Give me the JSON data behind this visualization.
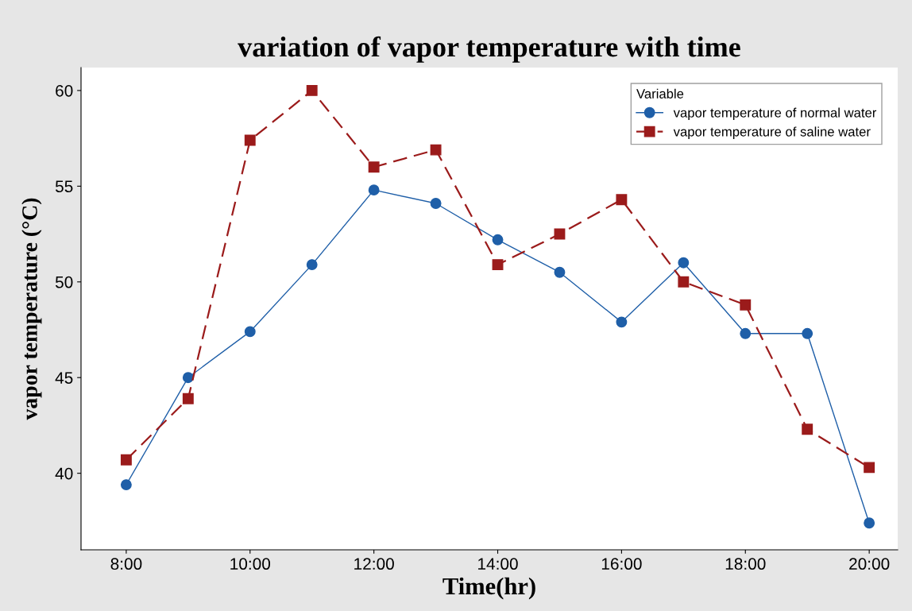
{
  "chart_data": {
    "type": "line",
    "title": "variation of vapor temperature with time",
    "xlabel": "Time(hr)",
    "ylabel": "vapor temperature (°C)",
    "legend_title": "Variable",
    "legend": "top right",
    "grid": false,
    "x": [
      8,
      9,
      10,
      11,
      12,
      13,
      14,
      15,
      16,
      17,
      18,
      19,
      20
    ],
    "xlim": [
      7.27,
      20.46
    ],
    "xticks": [
      {
        "value": 8,
        "label": "8:00"
      },
      {
        "value": 10,
        "label": "10:00"
      },
      {
        "value": 12,
        "label": "12:00"
      },
      {
        "value": 14,
        "label": "14:00"
      },
      {
        "value": 16,
        "label": "16:00"
      },
      {
        "value": 18,
        "label": "18:00"
      },
      {
        "value": 20,
        "label": "20:00"
      }
    ],
    "ylim": [
      36.0,
      61.2
    ],
    "yticks": [
      40,
      45,
      50,
      55,
      60
    ],
    "series": [
      {
        "name": "vapor temperature of normal water",
        "color": "#1f5fa8",
        "marker": "circle",
        "line_style": "solid",
        "values": [
          39.4,
          45.0,
          47.4,
          50.9,
          54.8,
          54.1,
          52.2,
          50.5,
          47.9,
          51.0,
          47.3,
          47.3,
          37.4
        ]
      },
      {
        "name": "vapor temperature of saline water",
        "color": "#9b1b1b",
        "marker": "square",
        "line_style": "dashed",
        "values": [
          40.7,
          43.9,
          57.4,
          60.0,
          56.0,
          56.9,
          50.9,
          52.5,
          54.3,
          50.0,
          48.8,
          42.3,
          40.3
        ]
      }
    ]
  }
}
